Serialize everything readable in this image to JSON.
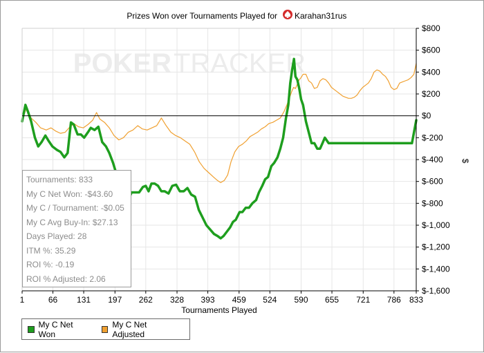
{
  "chart_data": {
    "type": "line",
    "title": "Prizes Won over Tournaments Played for",
    "player": "Karahan31rus",
    "watermark": {
      "left": "POKER",
      "right": "TRACKER"
    },
    "xlabel": "Tournaments Played",
    "ylabel": "$",
    "xlim": [
      1,
      833
    ],
    "ylim": [
      -1600,
      800
    ],
    "x_ticks": [
      1,
      66,
      131,
      197,
      262,
      328,
      393,
      459,
      524,
      590,
      655,
      721,
      786,
      833
    ],
    "y_ticks": [
      {
        "v": 800,
        "label": "$800"
      },
      {
        "v": 600,
        "label": "$600"
      },
      {
        "v": 400,
        "label": "$400"
      },
      {
        "v": 200,
        "label": "$200"
      },
      {
        "v": 0,
        "label": "$0"
      },
      {
        "v": -200,
        "label": "$-200"
      },
      {
        "v": -400,
        "label": "$-400"
      },
      {
        "v": -600,
        "label": "$-600"
      },
      {
        "v": -800,
        "label": "$-800"
      },
      {
        "v": -1000,
        "label": "$-1,000"
      },
      {
        "v": -1200,
        "label": "$-1,200"
      },
      {
        "v": -1400,
        "label": "$-1,400"
      },
      {
        "v": -1600,
        "label": "$-1,600"
      }
    ],
    "grid": true,
    "legend_position": "bottom-left",
    "series": [
      {
        "name": "My C Net Won",
        "color": "#1e9e1e",
        "points": [
          [
            1,
            -50
          ],
          [
            8,
            100
          ],
          [
            14,
            30
          ],
          [
            20,
            -50
          ],
          [
            28,
            -200
          ],
          [
            35,
            -280
          ],
          [
            42,
            -240
          ],
          [
            50,
            -180
          ],
          [
            57,
            -230
          ],
          [
            65,
            -280
          ],
          [
            74,
            -310
          ],
          [
            82,
            -330
          ],
          [
            90,
            -380
          ],
          [
            97,
            -340
          ],
          [
            104,
            -60
          ],
          [
            110,
            -80
          ],
          [
            118,
            -170
          ],
          [
            125,
            -170
          ],
          [
            132,
            -200
          ],
          [
            140,
            -150
          ],
          [
            146,
            -110
          ],
          [
            154,
            -130
          ],
          [
            162,
            -100
          ],
          [
            170,
            -240
          ],
          [
            178,
            -280
          ],
          [
            185,
            -340
          ],
          [
            193,
            -430
          ],
          [
            200,
            -530
          ],
          [
            207,
            -580
          ],
          [
            214,
            -620
          ],
          [
            220,
            -680
          ],
          [
            226,
            -760
          ],
          [
            232,
            -700
          ],
          [
            240,
            -700
          ],
          [
            248,
            -700
          ],
          [
            256,
            -650
          ],
          [
            262,
            -640
          ],
          [
            268,
            -690
          ],
          [
            274,
            -620
          ],
          [
            281,
            -620
          ],
          [
            288,
            -640
          ],
          [
            295,
            -690
          ],
          [
            302,
            -690
          ],
          [
            310,
            -710
          ],
          [
            318,
            -640
          ],
          [
            326,
            -630
          ],
          [
            334,
            -690
          ],
          [
            342,
            -690
          ],
          [
            350,
            -660
          ],
          [
            358,
            -720
          ],
          [
            366,
            -740
          ],
          [
            374,
            -860
          ],
          [
            382,
            -930
          ],
          [
            390,
            -1000
          ],
          [
            398,
            -1040
          ],
          [
            406,
            -1080
          ],
          [
            414,
            -1100
          ],
          [
            420,
            -1120
          ],
          [
            426,
            -1100
          ],
          [
            433,
            -1060
          ],
          [
            440,
            -1020
          ],
          [
            446,
            -970
          ],
          [
            452,
            -950
          ],
          [
            460,
            -880
          ],
          [
            466,
            -880
          ],
          [
            473,
            -840
          ],
          [
            480,
            -840
          ],
          [
            487,
            -800
          ],
          [
            495,
            -770
          ],
          [
            501,
            -700
          ],
          [
            508,
            -640
          ],
          [
            514,
            -580
          ],
          [
            520,
            -560
          ],
          [
            527,
            -460
          ],
          [
            533,
            -430
          ],
          [
            540,
            -380
          ],
          [
            546,
            -300
          ],
          [
            552,
            -200
          ],
          [
            558,
            -20
          ],
          [
            563,
            100
          ],
          [
            567,
            300
          ],
          [
            571,
            420
          ],
          [
            575,
            520
          ],
          [
            578,
            360
          ],
          [
            582,
            330
          ],
          [
            586,
            250
          ],
          [
            590,
            150
          ],
          [
            594,
            100
          ],
          [
            600,
            -50
          ],
          [
            606,
            -150
          ],
          [
            612,
            -250
          ],
          [
            618,
            -250
          ],
          [
            624,
            -300
          ],
          [
            630,
            -300
          ],
          [
            635,
            -250
          ],
          [
            640,
            -200
          ],
          [
            648,
            -250
          ],
          [
            655,
            -250
          ],
          [
            662,
            -250
          ],
          [
            670,
            -250
          ],
          [
            676,
            -250
          ],
          [
            683,
            -250
          ],
          [
            690,
            -250
          ],
          [
            697,
            -250
          ],
          [
            704,
            -250
          ],
          [
            710,
            -250
          ],
          [
            716,
            -250
          ],
          [
            722,
            -250
          ],
          [
            728,
            -250
          ],
          [
            734,
            -250
          ],
          [
            740,
            -250
          ],
          [
            746,
            -250
          ],
          [
            752,
            -250
          ],
          [
            758,
            -250
          ],
          [
            764,
            -250
          ],
          [
            770,
            -250
          ],
          [
            776,
            -250
          ],
          [
            782,
            -250
          ],
          [
            788,
            -250
          ],
          [
            794,
            -250
          ],
          [
            800,
            -250
          ],
          [
            806,
            -250
          ],
          [
            812,
            -250
          ],
          [
            818,
            -250
          ],
          [
            824,
            -250
          ],
          [
            833,
            -40
          ]
        ]
      },
      {
        "name": "My C Net Adjusted",
        "color": "#f0a030",
        "points": [
          [
            1,
            -40
          ],
          [
            10,
            70
          ],
          [
            20,
            -20
          ],
          [
            30,
            -60
          ],
          [
            40,
            -110
          ],
          [
            52,
            -130
          ],
          [
            62,
            -110
          ],
          [
            72,
            -140
          ],
          [
            82,
            -160
          ],
          [
            92,
            -150
          ],
          [
            100,
            -110
          ],
          [
            110,
            -70
          ],
          [
            120,
            -100
          ],
          [
            130,
            -110
          ],
          [
            140,
            -80
          ],
          [
            150,
            -40
          ],
          [
            158,
            30
          ],
          [
            165,
            -30
          ],
          [
            175,
            -60
          ],
          [
            185,
            -110
          ],
          [
            195,
            -180
          ],
          [
            205,
            -220
          ],
          [
            215,
            -200
          ],
          [
            225,
            -150
          ],
          [
            235,
            -130
          ],
          [
            245,
            -90
          ],
          [
            255,
            -120
          ],
          [
            265,
            -130
          ],
          [
            275,
            -110
          ],
          [
            285,
            -90
          ],
          [
            295,
            -20
          ],
          [
            305,
            -90
          ],
          [
            315,
            -150
          ],
          [
            325,
            -180
          ],
          [
            335,
            -200
          ],
          [
            345,
            -230
          ],
          [
            355,
            -260
          ],
          [
            365,
            -330
          ],
          [
            375,
            -420
          ],
          [
            385,
            -480
          ],
          [
            395,
            -520
          ],
          [
            405,
            -560
          ],
          [
            413,
            -590
          ],
          [
            420,
            -610
          ],
          [
            428,
            -590
          ],
          [
            435,
            -540
          ],
          [
            442,
            -420
          ],
          [
            450,
            -330
          ],
          [
            458,
            -280
          ],
          [
            466,
            -260
          ],
          [
            474,
            -230
          ],
          [
            482,
            -190
          ],
          [
            490,
            -170
          ],
          [
            498,
            -150
          ],
          [
            506,
            -120
          ],
          [
            514,
            -100
          ],
          [
            522,
            -70
          ],
          [
            530,
            -60
          ],
          [
            538,
            -40
          ],
          [
            546,
            -20
          ],
          [
            554,
            40
          ],
          [
            560,
            100
          ],
          [
            565,
            160
          ],
          [
            570,
            220
          ],
          [
            574,
            260
          ],
          [
            578,
            250
          ],
          [
            582,
            290
          ],
          [
            586,
            330
          ],
          [
            590,
            350
          ],
          [
            594,
            380
          ],
          [
            600,
            380
          ],
          [
            606,
            320
          ],
          [
            612,
            300
          ],
          [
            618,
            250
          ],
          [
            624,
            260
          ],
          [
            630,
            320
          ],
          [
            636,
            340
          ],
          [
            642,
            330
          ],
          [
            648,
            300
          ],
          [
            654,
            260
          ],
          [
            660,
            240
          ],
          [
            666,
            220
          ],
          [
            672,
            200
          ],
          [
            678,
            180
          ],
          [
            684,
            170
          ],
          [
            690,
            160
          ],
          [
            696,
            160
          ],
          [
            702,
            170
          ],
          [
            708,
            190
          ],
          [
            714,
            230
          ],
          [
            720,
            260
          ],
          [
            726,
            280
          ],
          [
            732,
            300
          ],
          [
            738,
            340
          ],
          [
            744,
            400
          ],
          [
            750,
            420
          ],
          [
            756,
            410
          ],
          [
            762,
            380
          ],
          [
            768,
            360
          ],
          [
            774,
            320
          ],
          [
            780,
            260
          ],
          [
            786,
            240
          ],
          [
            792,
            250
          ],
          [
            798,
            300
          ],
          [
            804,
            310
          ],
          [
            810,
            320
          ],
          [
            816,
            330
          ],
          [
            822,
            350
          ],
          [
            828,
            380
          ],
          [
            833,
            480
          ]
        ]
      }
    ]
  },
  "stats": [
    "Tournaments: 833",
    "My C Net Won: -$43.60",
    "My C / Tournament: -$0.05",
    "My C Avg Buy-In: $27.13",
    "Days Played: 28",
    "ITM %: 35.29",
    "ROI %: -0.19",
    "ROI % Adjusted: 2.06"
  ],
  "legend": [
    {
      "label": "My C Net Won",
      "color": "#1e9e1e"
    },
    {
      "label": "My C Net Adjusted",
      "color": "#f0a030"
    }
  ]
}
